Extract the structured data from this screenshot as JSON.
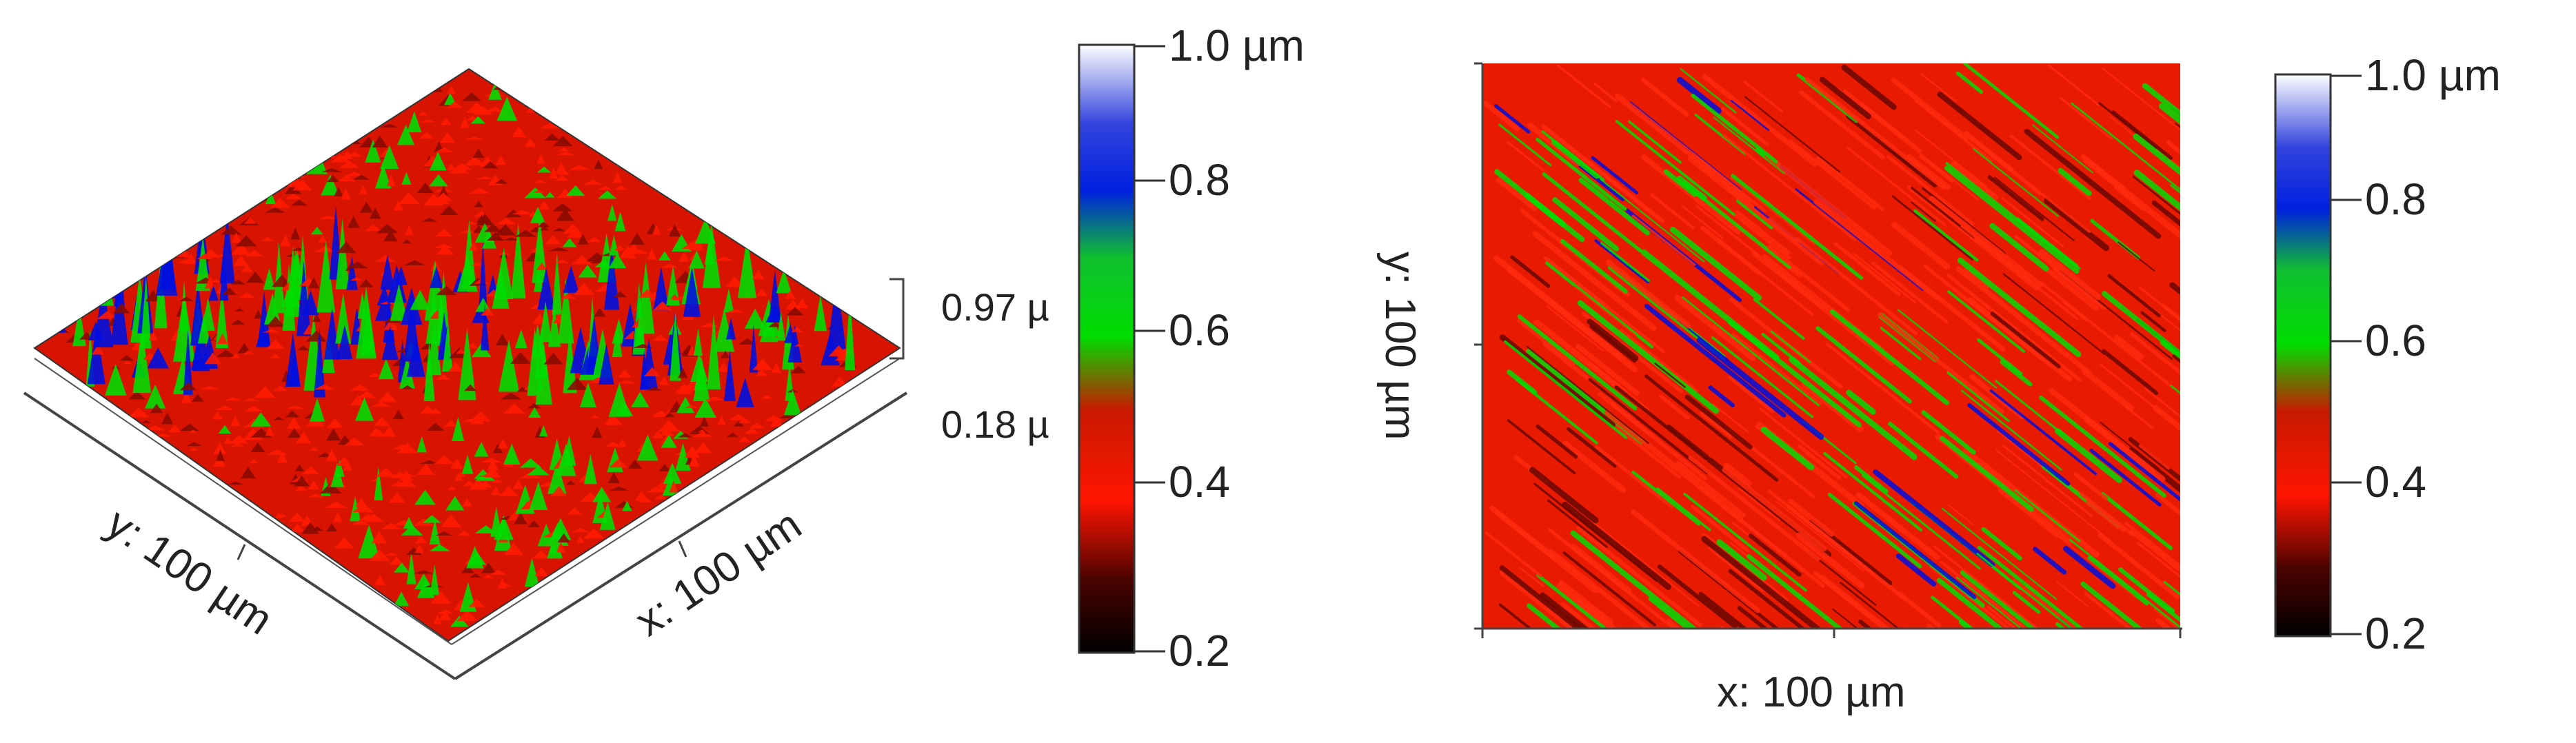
{
  "figure_3d": {
    "axis_x_label": "x: 100 µm",
    "axis_y_label": "y: 100 µm",
    "height_top": "0.97 µ",
    "height_bottom": "0.18 µ"
  },
  "colorbar_left": {
    "ticks": [
      "1.0 µm",
      "0.8",
      "0.6",
      "0.4",
      "0.2"
    ]
  },
  "figure_2d": {
    "axis_x_label": "x: 100 µm",
    "axis_y_label": "y: 100 µm"
  },
  "colorbar_right": {
    "ticks": [
      "1.0 µm",
      "0.8",
      "0.6",
      "0.4",
      "0.2"
    ]
  },
  "colormap": {
    "stops": [
      "#000000",
      "#ff1a00",
      "#00dd00",
      "#0010e0",
      "#ffffff"
    ]
  }
}
